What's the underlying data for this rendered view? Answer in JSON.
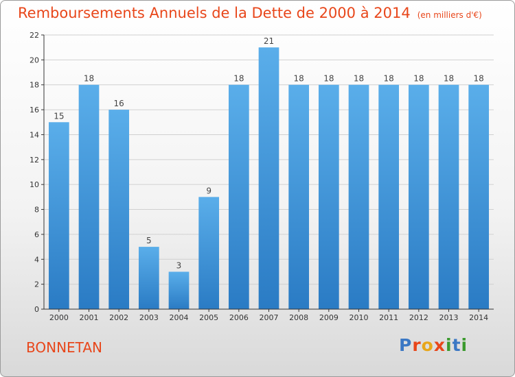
{
  "chart_data": {
    "type": "bar",
    "title": "Remboursements Annuels de la Dette de 2000 à 2014",
    "subtitle": "(en milliers d'€)",
    "categories": [
      "2000",
      "2001",
      "2002",
      "2003",
      "2004",
      "2005",
      "2006",
      "2007",
      "2008",
      "2009",
      "2010",
      "2011",
      "2012",
      "2013",
      "2014"
    ],
    "values": [
      15,
      18,
      16,
      5,
      3,
      9,
      18,
      21,
      18,
      18,
      18,
      18,
      18,
      18,
      18
    ],
    "xlabel": "",
    "ylabel": "",
    "ylim": [
      0,
      22
    ],
    "yticks": [
      0,
      2,
      4,
      6,
      8,
      10,
      12,
      14,
      16,
      18,
      20,
      22
    ],
    "grid": true,
    "legend": "none",
    "bar_color": "#3a8fd8"
  },
  "footer": {
    "town": "BONNETAN",
    "logo_text": "Proxiti"
  }
}
